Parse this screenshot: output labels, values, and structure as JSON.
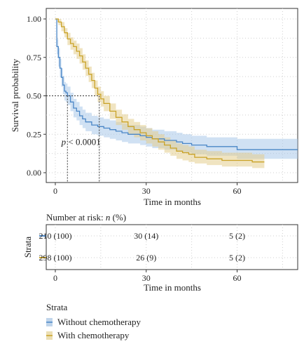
{
  "chart_data": [
    {
      "type": "line",
      "subtype": "kaplan-meier",
      "title": "",
      "xlabel": "Time in months",
      "ylabel": "Survival probability",
      "xlim": [
        -3,
        80
      ],
      "ylim": [
        0,
        1
      ],
      "xticks": [
        "0",
        "30",
        "60"
      ],
      "xtick_values": [
        0,
        30,
        60
      ],
      "yticks": [
        "0.00",
        "0.25",
        "0.50",
        "0.75",
        "1.00"
      ],
      "ytick_values": [
        0,
        0.25,
        0.5,
        0.75,
        1.0
      ],
      "grid": true,
      "annotation": {
        "prefix": "p",
        "text": " < 0.0001",
        "x": 2,
        "y": 0.18
      },
      "median_lines": [
        {
          "series": "Without chemotherapy",
          "x": 4,
          "y": 0.5
        },
        {
          "series": "With chemotherapy",
          "x": 14.5,
          "y": 0.5
        }
      ],
      "series": [
        {
          "name": "Without chemotherapy",
          "color": "#4a86c6",
          "band_color": "#aac9ea",
          "x": [
            0,
            0.5,
            1,
            1.5,
            2,
            2.5,
            3,
            3.5,
            4,
            5,
            6,
            7,
            8,
            9,
            10,
            12,
            14,
            16,
            18,
            20,
            22,
            24,
            26,
            28,
            30,
            32,
            34,
            36,
            38,
            40,
            42,
            45,
            50,
            60,
            70,
            80
          ],
          "y": [
            1.0,
            0.82,
            0.75,
            0.68,
            0.62,
            0.57,
            0.53,
            0.52,
            0.5,
            0.46,
            0.42,
            0.4,
            0.37,
            0.35,
            0.33,
            0.31,
            0.3,
            0.29,
            0.28,
            0.27,
            0.26,
            0.25,
            0.25,
            0.24,
            0.23,
            0.22,
            0.22,
            0.21,
            0.21,
            0.2,
            0.19,
            0.18,
            0.17,
            0.15,
            0.15,
            0.15
          ],
          "lower": [
            1.0,
            0.77,
            0.69,
            0.62,
            0.56,
            0.51,
            0.47,
            0.46,
            0.44,
            0.4,
            0.36,
            0.34,
            0.31,
            0.29,
            0.27,
            0.25,
            0.24,
            0.23,
            0.22,
            0.21,
            0.2,
            0.19,
            0.19,
            0.18,
            0.17,
            0.16,
            0.16,
            0.15,
            0.15,
            0.14,
            0.13,
            0.12,
            0.11,
            0.09,
            0.09,
            0.09
          ],
          "upper": [
            1.0,
            0.87,
            0.81,
            0.74,
            0.68,
            0.63,
            0.59,
            0.58,
            0.56,
            0.52,
            0.48,
            0.46,
            0.43,
            0.41,
            0.39,
            0.37,
            0.36,
            0.35,
            0.34,
            0.33,
            0.32,
            0.31,
            0.31,
            0.3,
            0.29,
            0.28,
            0.28,
            0.27,
            0.27,
            0.26,
            0.25,
            0.24,
            0.23,
            0.22,
            0.22,
            0.22
          ]
        },
        {
          "name": "With chemotherapy",
          "color": "#c9a227",
          "band_color": "#e3cd8e",
          "x": [
            0,
            1,
            2,
            3,
            4,
            5,
            6,
            7,
            8,
            9,
            10,
            11,
            12,
            13,
            14,
            15,
            16,
            18,
            20,
            22,
            24,
            26,
            28,
            30,
            32,
            34,
            36,
            38,
            40,
            42,
            44,
            46,
            50,
            55,
            60,
            65,
            69
          ],
          "y": [
            1.0,
            0.98,
            0.95,
            0.91,
            0.87,
            0.84,
            0.82,
            0.79,
            0.76,
            0.72,
            0.68,
            0.64,
            0.6,
            0.55,
            0.51,
            0.48,
            0.45,
            0.4,
            0.36,
            0.33,
            0.3,
            0.28,
            0.26,
            0.24,
            0.22,
            0.2,
            0.18,
            0.16,
            0.14,
            0.13,
            0.12,
            0.1,
            0.09,
            0.08,
            0.08,
            0.07,
            0.07
          ],
          "lower": [
            1.0,
            0.96,
            0.92,
            0.88,
            0.83,
            0.8,
            0.77,
            0.74,
            0.71,
            0.67,
            0.63,
            0.59,
            0.55,
            0.5,
            0.46,
            0.43,
            0.4,
            0.35,
            0.31,
            0.28,
            0.25,
            0.23,
            0.21,
            0.19,
            0.17,
            0.15,
            0.13,
            0.11,
            0.09,
            0.08,
            0.07,
            0.06,
            0.05,
            0.04,
            0.04,
            0.03,
            0.03
          ],
          "upper": [
            1.0,
            1.0,
            0.98,
            0.94,
            0.91,
            0.88,
            0.86,
            0.84,
            0.81,
            0.77,
            0.73,
            0.69,
            0.65,
            0.6,
            0.56,
            0.53,
            0.5,
            0.45,
            0.41,
            0.38,
            0.35,
            0.33,
            0.31,
            0.29,
            0.27,
            0.25,
            0.23,
            0.21,
            0.19,
            0.18,
            0.17,
            0.15,
            0.14,
            0.13,
            0.13,
            0.12,
            0.12
          ]
        }
      ]
    },
    {
      "type": "table",
      "title": "Number at risk: n (%)",
      "title_parts": [
        "Number at risk: ",
        "n",
        " (%)"
      ],
      "xlabel": "Time in months",
      "ylabel": "Strata",
      "xticks": [
        "0",
        "30",
        "60"
      ],
      "xtick_values": [
        0,
        30,
        60
      ],
      "rows": [
        {
          "series": "Without chemotherapy",
          "color": "#4a86c6",
          "values": [
            "210 (100)",
            "30 (14)",
            "5 (2)"
          ]
        },
        {
          "series": "With chemotherapy",
          "color": "#c9a227",
          "values": [
            "298 (100)",
            "26 (9)",
            "5 (2)"
          ]
        }
      ]
    }
  ],
  "legend": {
    "title": "Strata",
    "items": [
      {
        "label": "Without chemotherapy",
        "color": "#4a86c6"
      },
      {
        "label": "With chemotherapy",
        "color": "#c9a227"
      }
    ]
  }
}
